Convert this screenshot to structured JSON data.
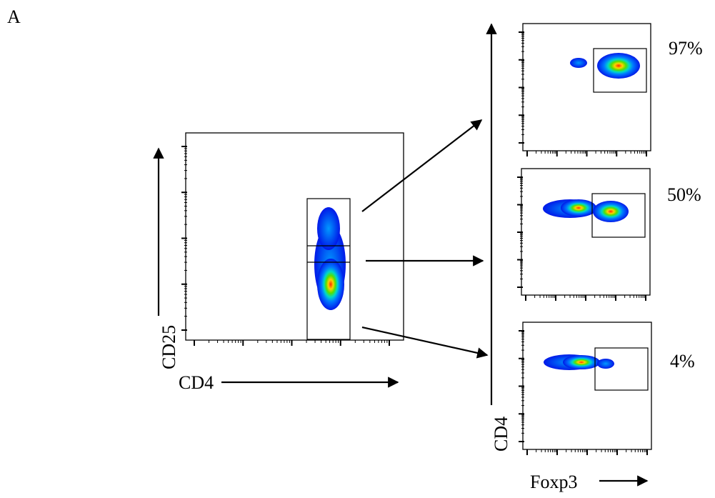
{
  "figure": {
    "panel_letter": "A",
    "main_plot": {
      "y_label": "CD25",
      "x_label": "CD4"
    },
    "gated_plots": [
      {
        "percent": "97%"
      },
      {
        "percent": "50%"
      },
      {
        "percent": "4%"
      }
    ],
    "gated_axes": {
      "y_label": "CD4",
      "x_label": "Foxp3"
    }
  }
}
